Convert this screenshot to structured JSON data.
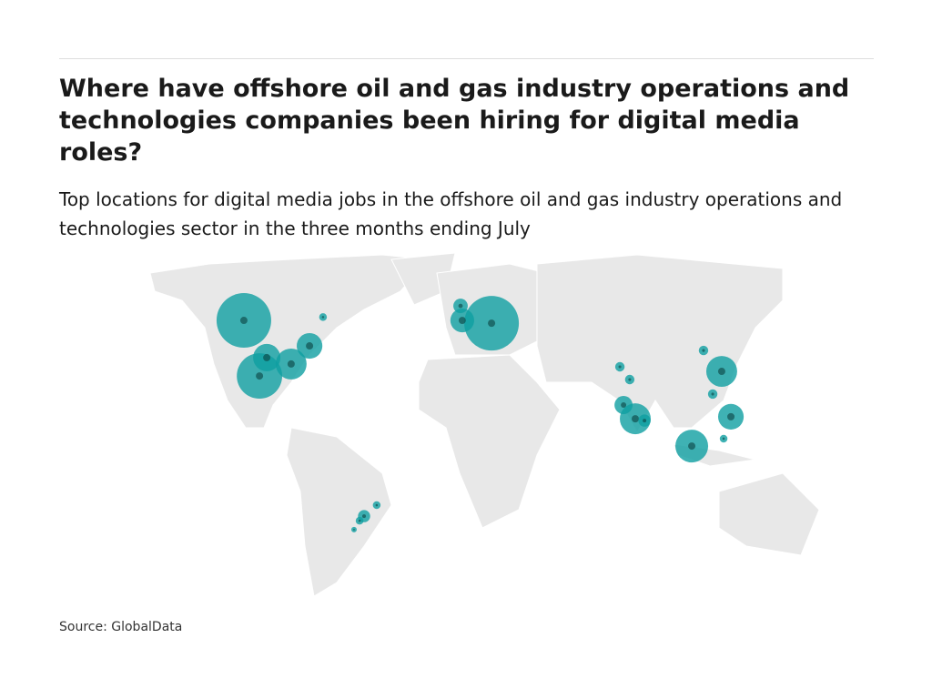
{
  "header": {
    "title": "Where have offshore oil and gas industry operations and technologies companies been hiring for digital media roles?",
    "subtitle": "Top locations for digital media jobs in the offshore oil and gas industry operations and technologies sector in the three months ending July"
  },
  "map": {
    "bubbles": [
      {
        "lon": -103,
        "lat": 50.7,
        "value": 100
      },
      {
        "lon": -95.7,
        "lat": 28.9,
        "value": 69
      },
      {
        "lon": -92.3,
        "lat": 36.1,
        "value": 25
      },
      {
        "lon": -80.9,
        "lat": 33.6,
        "value": 32
      },
      {
        "lon": -72.3,
        "lat": 40.7,
        "value": 22
      },
      {
        "lon": -66,
        "lat": 52,
        "value": 2
      },
      {
        "lon": 12.8,
        "lat": 49.6,
        "value": 100
      },
      {
        "lon": -0.9,
        "lat": 50.7,
        "value": 19
      },
      {
        "lon": -1.7,
        "lat": 56.4,
        "value": 7
      },
      {
        "lon": 111.9,
        "lat": 38.9,
        "value": 3
      },
      {
        "lon": 120.4,
        "lat": 30.7,
        "value": 32
      },
      {
        "lon": 116.2,
        "lat": 21.8,
        "value": 3
      },
      {
        "lon": 124.7,
        "lat": 12.9,
        "value": 22
      },
      {
        "lon": 121.3,
        "lat": 4.3,
        "value": 2
      },
      {
        "lon": 106.4,
        "lat": 1.4,
        "value": 36
      },
      {
        "lon": 74.5,
        "lat": 17.5,
        "value": 11
      },
      {
        "lon": 80,
        "lat": 12.1,
        "value": 32
      },
      {
        "lon": 84.3,
        "lat": 11.4,
        "value": 5
      },
      {
        "lon": 72.8,
        "lat": 32.5,
        "value": 3
      },
      {
        "lon": 77.4,
        "lat": 27.5,
        "value": 3
      },
      {
        "lon": -46.8,
        "lat": -26.1,
        "value": 5
      },
      {
        "lon": -40.9,
        "lat": -21.8,
        "value": 2
      },
      {
        "lon": -48.9,
        "lat": -27.9,
        "value": 2
      },
      {
        "lon": -51.5,
        "lat": -31.4,
        "value": 1
      }
    ],
    "color": "#0f9fa1"
  },
  "footer": {
    "source": "Source: GlobalData"
  }
}
